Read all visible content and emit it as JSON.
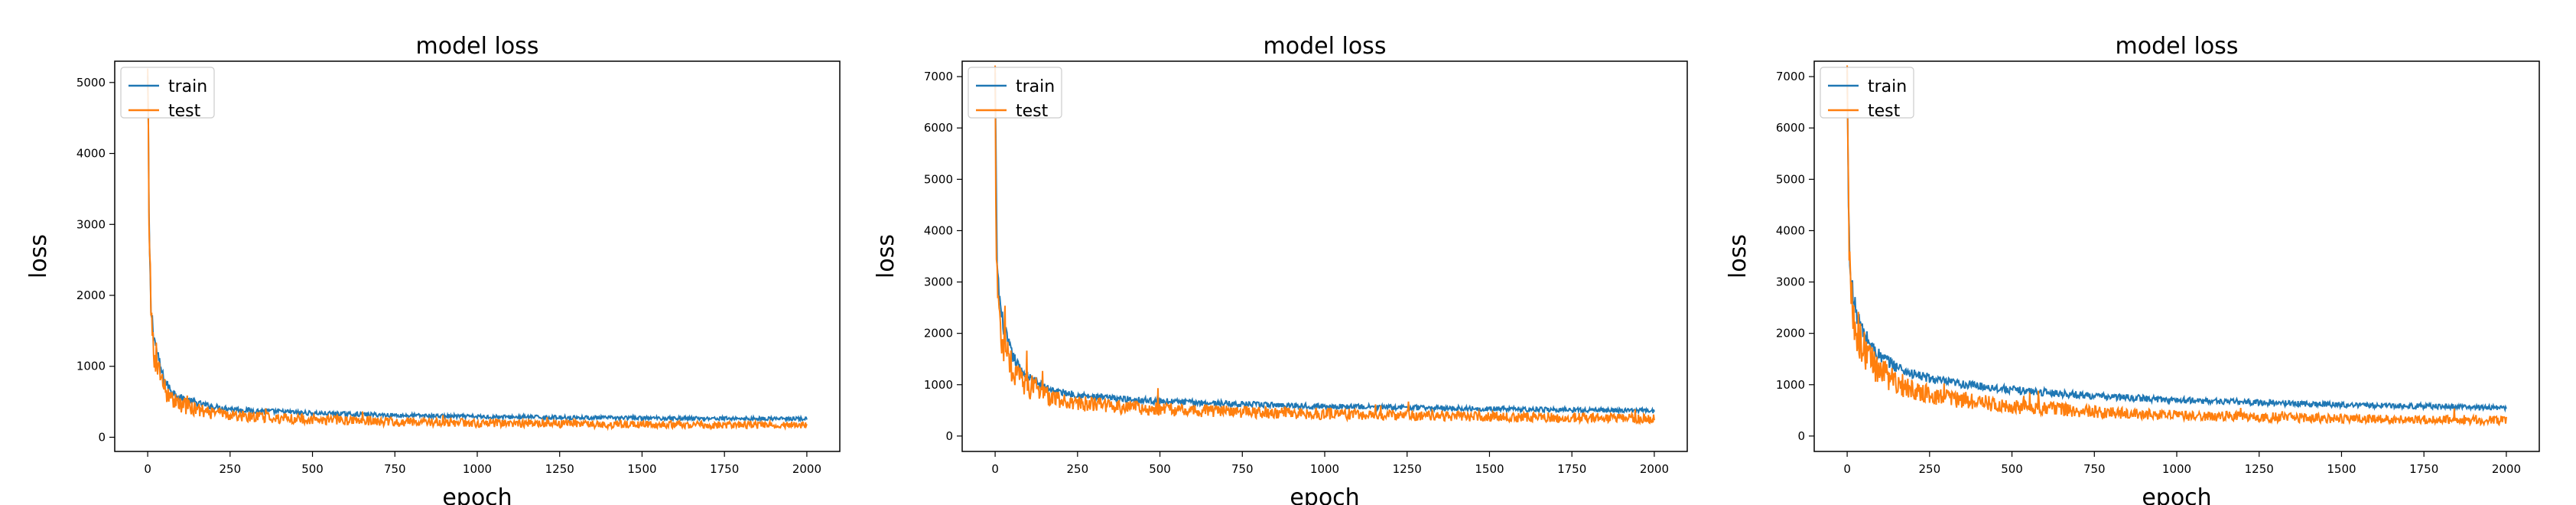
{
  "chart_data": [
    {
      "type": "line",
      "title": "model loss",
      "xlabel": "epoch",
      "ylabel": "loss",
      "xlim": [
        -100,
        2100
      ],
      "ylim": [
        -200,
        5300
      ],
      "xticks": [
        0,
        250,
        500,
        750,
        1000,
        1250,
        1500,
        1750,
        2000
      ],
      "yticks": [
        0,
        1000,
        2000,
        3000,
        4000,
        5000
      ],
      "grid": false,
      "legend_position": "upper-left",
      "series": [
        {
          "name": "train",
          "color": "#1f77b4",
          "x": [
            0,
            5,
            10,
            20,
            35,
            50,
            75,
            100,
            150,
            200,
            300,
            500,
            750,
            1000,
            1500,
            2000
          ],
          "values": [
            5000,
            2700,
            1800,
            1400,
            1050,
            800,
            640,
            560,
            480,
            430,
            380,
            340,
            310,
            290,
            270,
            260
          ]
        },
        {
          "name": "test",
          "color": "#ff7f0e",
          "x": [
            0,
            5,
            10,
            20,
            35,
            50,
            75,
            100,
            150,
            200,
            300,
            500,
            750,
            1000,
            1500,
            2000
          ],
          "values": [
            4900,
            2500,
            1650,
            1250,
            950,
            700,
            540,
            460,
            380,
            330,
            290,
            250,
            220,
            200,
            180,
            170
          ]
        }
      ]
    },
    {
      "type": "line",
      "title": "model loss",
      "xlabel": "epoch",
      "ylabel": "loss",
      "xlim": [
        -100,
        2100
      ],
      "ylim": [
        -300,
        7300
      ],
      "xticks": [
        0,
        250,
        500,
        750,
        1000,
        1250,
        1500,
        1750,
        2000
      ],
      "yticks": [
        0,
        1000,
        2000,
        3000,
        4000,
        5000,
        6000,
        7000
      ],
      "grid": false,
      "legend_position": "upper-left",
      "series": [
        {
          "name": "train",
          "color": "#1f77b4",
          "x": [
            0,
            5,
            10,
            20,
            35,
            50,
            75,
            100,
            150,
            200,
            300,
            500,
            750,
            1000,
            1500,
            2000
          ],
          "values": [
            6900,
            3600,
            2900,
            2300,
            1900,
            1600,
            1300,
            1150,
            950,
            850,
            760,
            680,
            620,
            580,
            530,
            490
          ]
        },
        {
          "name": "test",
          "color": "#ff7f0e",
          "x": [
            0,
            5,
            10,
            20,
            35,
            50,
            75,
            100,
            150,
            200,
            300,
            500,
            750,
            1000,
            1500,
            2000
          ],
          "values": [
            6700,
            3400,
            2600,
            2000,
            1650,
            1350,
            1100,
            950,
            800,
            700,
            600,
            520,
            470,
            430,
            380,
            340
          ]
        }
      ]
    },
    {
      "type": "line",
      "title": "model loss",
      "xlabel": "epoch",
      "ylabel": "loss",
      "xlim": [
        -100,
        2100
      ],
      "ylim": [
        -300,
        7300
      ],
      "xticks": [
        0,
        250,
        500,
        750,
        1000,
        1250,
        1500,
        1750,
        2000
      ],
      "yticks": [
        0,
        1000,
        2000,
        3000,
        4000,
        5000,
        6000,
        7000
      ],
      "grid": false,
      "legend_position": "upper-left",
      "series": [
        {
          "name": "train",
          "color": "#1f77b4",
          "x": [
            0,
            5,
            10,
            20,
            35,
            50,
            75,
            100,
            150,
            200,
            300,
            500,
            750,
            1000,
            1500,
            2000
          ],
          "values": [
            6900,
            4000,
            3200,
            2600,
            2250,
            2000,
            1750,
            1550,
            1350,
            1200,
            1050,
            900,
            780,
            700,
            610,
            550
          ]
        },
        {
          "name": "test",
          "color": "#ff7f0e",
          "x": [
            0,
            5,
            10,
            20,
            35,
            50,
            75,
            100,
            150,
            200,
            300,
            500,
            750,
            1000,
            1500,
            2000
          ],
          "values": [
            6600,
            3800,
            3000,
            2350,
            1950,
            1700,
            1450,
            1250,
            1050,
            900,
            750,
            580,
            470,
            400,
            340,
            300
          ]
        }
      ]
    }
  ]
}
